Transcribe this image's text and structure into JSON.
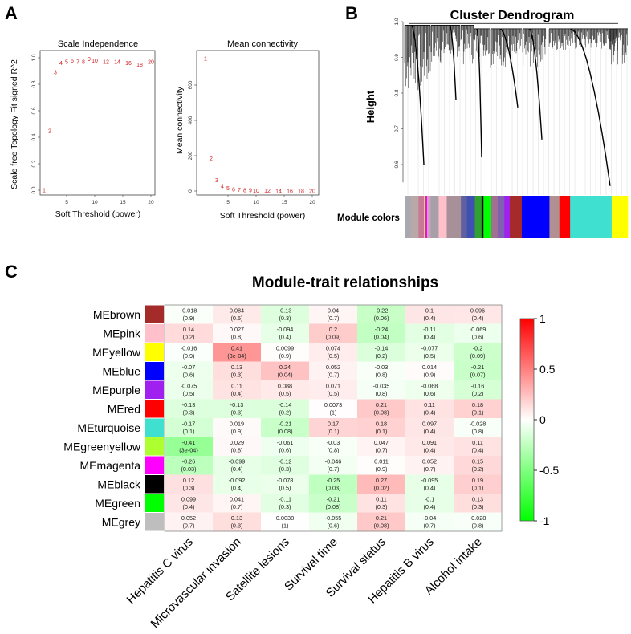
{
  "panels": {
    "a": "A",
    "b": "B",
    "c": "C"
  },
  "chart_data": [
    {
      "type": "scatter",
      "id": "scale-independence",
      "title": "Scale Independence",
      "xlabel": "Soft Threshold  (power)",
      "ylabel": "Scale free Topology Fit signed R^2",
      "xlim": [
        0.5,
        20.5
      ],
      "ylim": [
        0,
        1
      ],
      "xticks": [
        "5",
        "10",
        "15",
        "20"
      ],
      "yticks": [
        "0.0",
        "0.2",
        "0.4",
        "0.6",
        "0.8",
        "1.0"
      ],
      "threshold_line": 0.9,
      "x": [
        1,
        2,
        3,
        4,
        5,
        6,
        7,
        8,
        9,
        10,
        12,
        14,
        16,
        18,
        20
      ],
      "y": [
        0.0,
        0.45,
        0.89,
        0.96,
        0.97,
        0.98,
        0.97,
        0.97,
        0.99,
        0.98,
        0.97,
        0.97,
        0.96,
        0.95,
        0.97
      ],
      "point_labels": [
        "1",
        "2",
        "3",
        "4",
        "5",
        "6",
        "7",
        "8",
        "9",
        "10",
        "12",
        "14",
        "16",
        "18",
        "20"
      ]
    },
    {
      "type": "scatter",
      "id": "mean-connectivity",
      "title": "Mean connectivity",
      "xlabel": "Soft Threshold  (power)",
      "ylabel": "Mean connectivity",
      "xlim": [
        0.5,
        20.5
      ],
      "ylim": [
        0,
        760
      ],
      "xticks": [
        "5",
        "10",
        "15",
        "20"
      ],
      "yticks": [
        "0",
        "200",
        "400",
        "600"
      ],
      "x": [
        1,
        2,
        3,
        4,
        5,
        6,
        7,
        8,
        9,
        10,
        12,
        14,
        16,
        18,
        20
      ],
      "y": [
        750,
        185,
        62,
        28,
        15,
        10,
        7,
        5,
        4,
        3,
        2,
        1,
        1,
        1,
        1
      ],
      "point_labels": [
        "1",
        "2",
        "3",
        "4",
        "5",
        "6",
        "7",
        "8",
        "9",
        "10",
        "12",
        "14",
        "16",
        "18",
        "20"
      ]
    },
    {
      "type": "dendrogram",
      "id": "cluster-dendrogram",
      "title": "Cluster Dendrogram",
      "ylabel": "Height",
      "yticks": [
        "0.6",
        "0.7",
        "0.8",
        "0.9",
        "1.0"
      ],
      "ylim": [
        0.55,
        1.0
      ],
      "color_bar_label": "Module colors",
      "module_color_segments": [
        {
          "color": "#a8a8b0",
          "weight": 22
        },
        {
          "color": "#b8a8a8",
          "weight": 30
        },
        {
          "color": "#c87890",
          "weight": 20
        },
        {
          "color": "#adff2f",
          "weight": 5
        },
        {
          "color": "#ff00ff",
          "weight": 7
        },
        {
          "color": "#d0a0c0",
          "weight": 13
        },
        {
          "color": "#a8a0a8",
          "weight": 30
        },
        {
          "color": "#ffc0cb",
          "weight": 30
        },
        {
          "color": "#a89098",
          "weight": 53
        },
        {
          "color": "#6060a0",
          "weight": 22
        },
        {
          "color": "#4050b0",
          "weight": 30
        },
        {
          "color": "#30a030",
          "weight": 25
        },
        {
          "color": "#000000",
          "weight": 7
        },
        {
          "color": "#00ff00",
          "weight": 26
        },
        {
          "color": "#a07090",
          "weight": 27
        },
        {
          "color": "#8060b0",
          "weight": 25
        },
        {
          "color": "#a020f0",
          "weight": 20
        },
        {
          "color": "#a52a2a",
          "weight": 45
        },
        {
          "color": "#0000ff",
          "weight": 103
        },
        {
          "color": "#b09090",
          "weight": 37
        },
        {
          "color": "#ff0000",
          "weight": 40
        },
        {
          "color": "#40e0d0",
          "weight": 155
        },
        {
          "color": "#ffff00",
          "weight": 60
        }
      ]
    },
    {
      "type": "heatmap",
      "id": "module-trait-relationships",
      "title": "Module-trait relationships",
      "columns": [
        "Hepatitis C virus",
        "Microvascular invasion",
        "Satellite lesions",
        "Survival time",
        "Survival status",
        "Hepatitis B virus",
        "Alcohol intake"
      ],
      "rows": [
        {
          "name": "MEbrown",
          "color": "#a52a2a",
          "r": [
            "-0.018",
            "0.084",
            "-0.13",
            "0.04",
            "-0.22",
            "0.1",
            "0.096"
          ],
          "p": [
            "(0.9)",
            "(0.5)",
            "(0.3)",
            "(0.7)",
            "(0.06)",
            "(0.4)",
            "(0.4)"
          ]
        },
        {
          "name": "MEpink",
          "color": "#ffc0cb",
          "r": [
            "0.14",
            "0.027",
            "-0.094",
            "0.2",
            "-0.24",
            "-0.11",
            "-0.069"
          ],
          "p": [
            "(0.2)",
            "(0.8)",
            "(0.4)",
            "(0.09)",
            "(0.04)",
            "(0.4)",
            "(0.6)"
          ]
        },
        {
          "name": "MEyellow",
          "color": "#ffff00",
          "r": [
            "-0.016",
            "0.41",
            "0.0099",
            "0.074",
            "-0.14",
            "-0.077",
            "-0.2"
          ],
          "p": [
            "(0.9)",
            "(3e-04)",
            "(0.9)",
            "(0.5)",
            "(0.2)",
            "(0.5)",
            "(0.09)"
          ]
        },
        {
          "name": "MEblue",
          "color": "#0000ff",
          "r": [
            "-0.07",
            "0.13",
            "0.24",
            "0.052",
            "-0.03",
            "0.014",
            "-0.21"
          ],
          "p": [
            "(0.6)",
            "(0.3)",
            "(0.04)",
            "(0.7)",
            "(0.8)",
            "(0.9)",
            "(0.07)"
          ]
        },
        {
          "name": "MEpurple",
          "color": "#a020f0",
          "r": [
            "-0.075",
            "0.11",
            "0.088",
            "0.071",
            "-0.035",
            "-0.068",
            "-0.16"
          ],
          "p": [
            "(0.5)",
            "(0.4)",
            "(0.5)",
            "(0.5)",
            "(0.8)",
            "(0.6)",
            "(0.2)"
          ]
        },
        {
          "name": "MEred",
          "color": "#ff0000",
          "r": [
            "-0.13",
            "-0.13",
            "-0.14",
            "0.0073",
            "0.21",
            "0.11",
            "0.18"
          ],
          "p": [
            "(0.3)",
            "(0.3)",
            "(0.2)",
            "(1)",
            "(0.08)",
            "(0.4)",
            "(0.1)"
          ]
        },
        {
          "name": "MEturquoise",
          "color": "#40e0d0",
          "r": [
            "-0.17",
            "0.019",
            "-0.21",
            "0.17",
            "0.18",
            "0.097",
            "-0.028"
          ],
          "p": [
            "(0.1)",
            "(0.9)",
            "(0.08)",
            "(0.1)",
            "(0.1)",
            "(0.4)",
            "(0.8)"
          ]
        },
        {
          "name": "MEgreenyellow",
          "color": "#adff2f",
          "r": [
            "-0.41",
            "0.029",
            "-0.061",
            "-0.03",
            "0.047",
            "0.091",
            "0.11"
          ],
          "p": [
            "(3e-04)",
            "(0.8)",
            "(0.6)",
            "(0.8)",
            "(0.7)",
            "(0.4)",
            "(0.4)"
          ]
        },
        {
          "name": "MEmagenta",
          "color": "#ff00ff",
          "r": [
            "-0.26",
            "-0.099",
            "-0.12",
            "-0.046",
            "0.011",
            "0.052",
            "0.15"
          ],
          "p": [
            "(0.03)",
            "(0.4)",
            "(0.3)",
            "(0.7)",
            "(0.9)",
            "(0.7)",
            "(0.2)"
          ]
        },
        {
          "name": "MEblack",
          "color": "#000000",
          "r": [
            "0.12",
            "-0.092",
            "-0.078",
            "-0.25",
            "0.27",
            "-0.095",
            "0.19"
          ],
          "p": [
            "(0.3)",
            "(0.4)",
            "(0.5)",
            "(0.03)",
            "(0.02)",
            "(0.4)",
            "(0.1)"
          ]
        },
        {
          "name": "MEgreen",
          "color": "#00ff00",
          "r": [
            "0.099",
            "0.041",
            "-0.11",
            "-0.21",
            "0.11",
            "-0.1",
            "0.13"
          ],
          "p": [
            "(0.4)",
            "(0.7)",
            "(0.3)",
            "(0.08)",
            "(0.3)",
            "(0.4)",
            "(0.3)"
          ]
        },
        {
          "name": "MEgrey",
          "color": "#bebebe",
          "r": [
            "0.052",
            "0.13",
            "0.0038",
            "-0.055",
            "0.21",
            "-0.04",
            "-0.028"
          ],
          "p": [
            "(0.7)",
            "(0.3)",
            "(1)",
            "(0.6)",
            "(0.08)",
            "(0.7)",
            "(0.8)"
          ]
        }
      ],
      "colorscale": {
        "min": -1,
        "max": 1,
        "low": "#00ff00",
        "mid": "#ffffff",
        "high": "#ff0000"
      },
      "colorbar_ticks": [
        "1",
        "0.5",
        "0",
        "-0.5",
        "-1"
      ]
    }
  ]
}
